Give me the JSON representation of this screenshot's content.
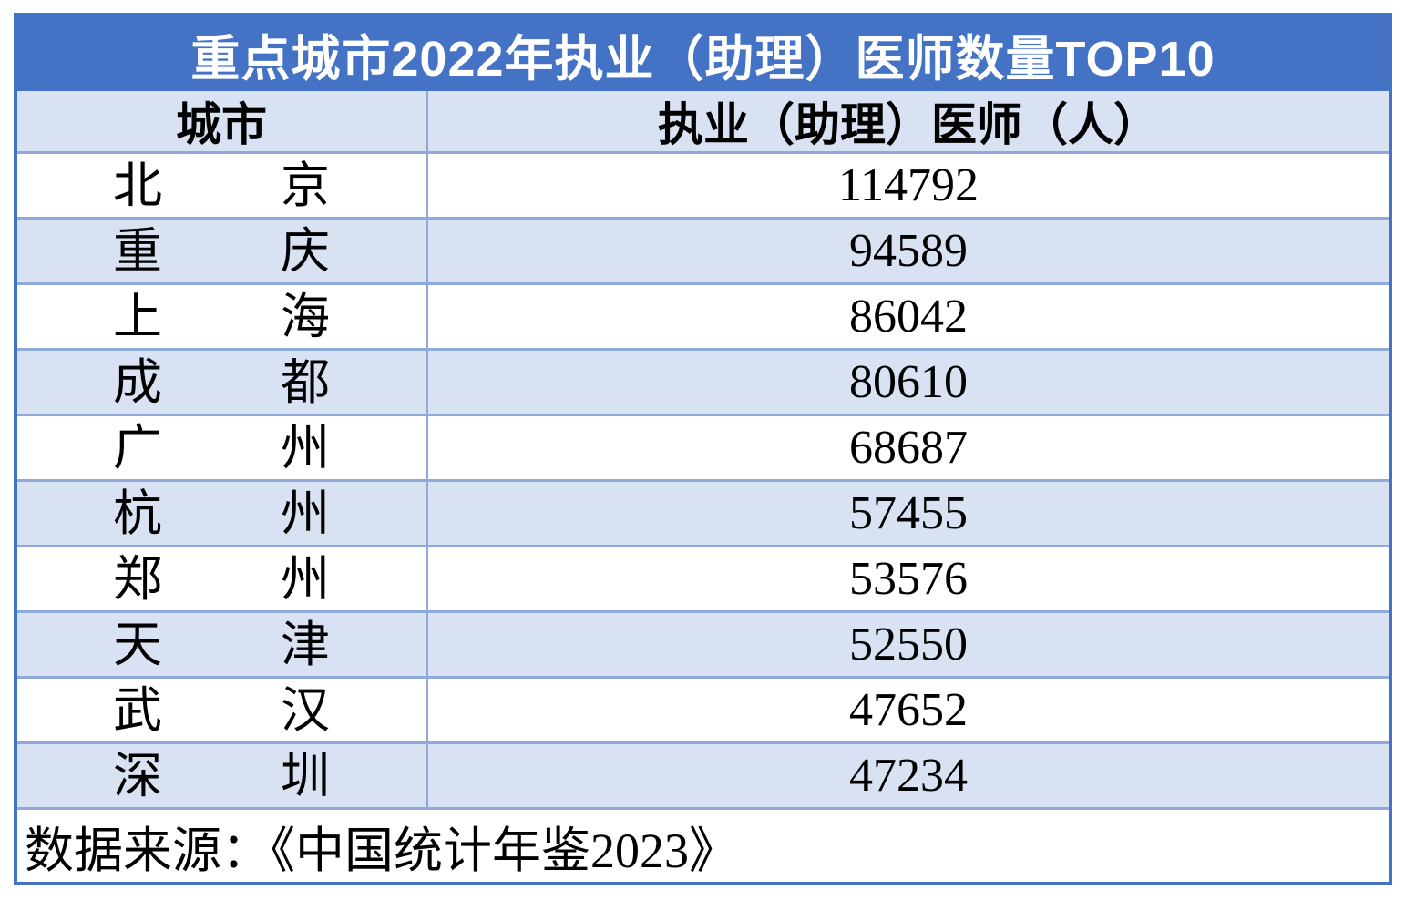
{
  "chart_data": {
    "type": "table",
    "title": "重点城市2022年执业（助理）医师数量TOP10",
    "columns": [
      "城市",
      "执业（助理）医师（人）"
    ],
    "rows": [
      {
        "city": "北京",
        "value": "114792"
      },
      {
        "city": "重庆",
        "value": "94589"
      },
      {
        "city": "上海",
        "value": "86042"
      },
      {
        "city": "成都",
        "value": "80610"
      },
      {
        "city": "广州",
        "value": "68687"
      },
      {
        "city": "杭州",
        "value": "57455"
      },
      {
        "city": "郑州",
        "value": "53576"
      },
      {
        "city": "天津",
        "value": "52550"
      },
      {
        "city": "武汉",
        "value": "47652"
      },
      {
        "city": "深圳",
        "value": "47234"
      }
    ],
    "source_note": "数据来源：《中国统计年鉴2023》",
    "layout": {
      "header_background": "zebra light-blue/white rows, no legend, no axes",
      "value_alignment": "center",
      "city_alignment": "distributed"
    }
  },
  "colors": {
    "accent": "#4472C4",
    "row_alt": "#D9E2F3",
    "grid_border": "#8EAADB",
    "title_text": "#FFFFFF",
    "body_text": "#000000"
  }
}
